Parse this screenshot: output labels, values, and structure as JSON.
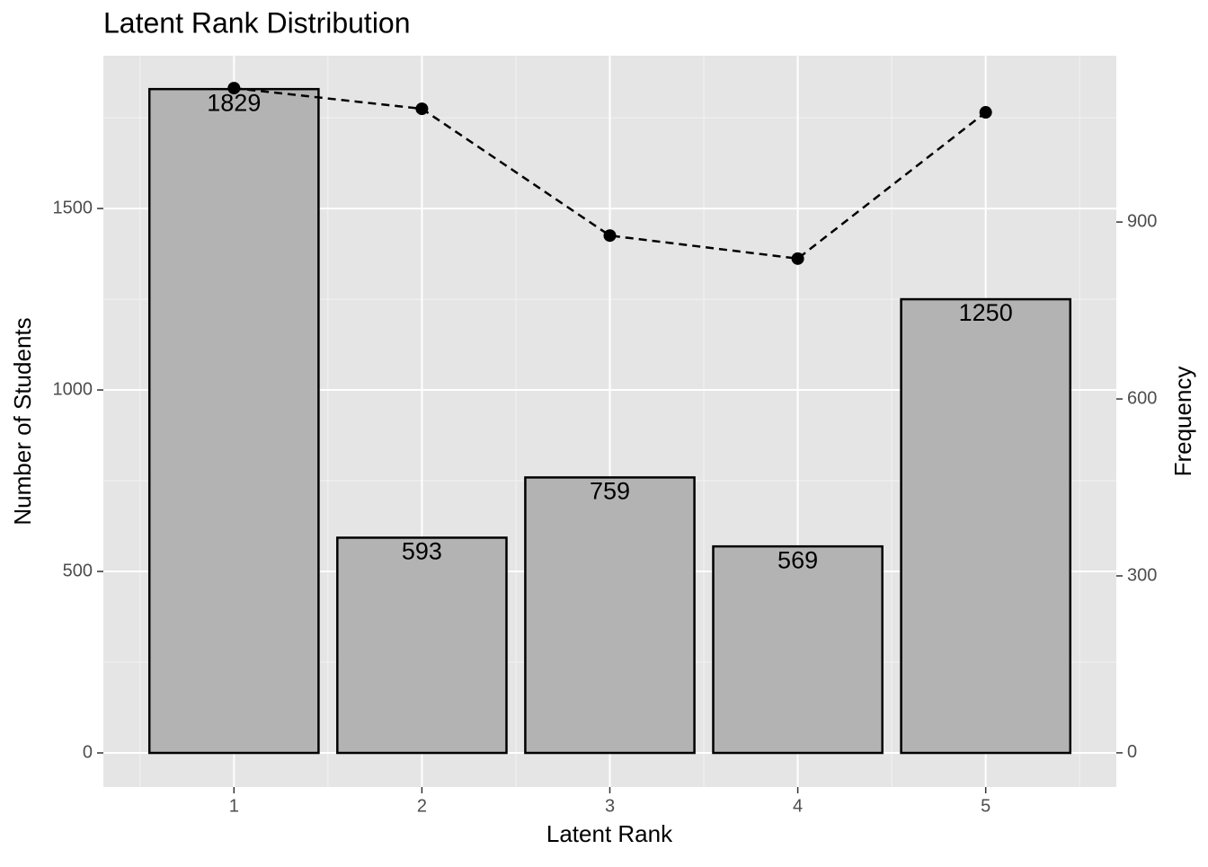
{
  "chart_data": {
    "type": "bar",
    "title": "Latent Rank Distribution",
    "x_label": "Latent Rank",
    "y_label": "Number of Students",
    "y2_label": "Frequency",
    "x": [
      1,
      2,
      3,
      4,
      5
    ],
    "series": [
      {
        "type": "bar",
        "color": "#b3b3b3",
        "values": [
          1829,
          593,
          759,
          569,
          1250
        ]
      },
      {
        "type": "line",
        "axis": "y2",
        "color": "#000000",
        "values": [
          1127,
          1092,
          877,
          838,
          1086
        ]
      }
    ],
    "xlim": [
      0.305,
      5.695
    ],
    "xticks": [
      1,
      2,
      3,
      4,
      5
    ],
    "ylim": [
      -94,
      1921
    ],
    "yticks": [
      0,
      500,
      1000,
      1500
    ],
    "y2lim": [
      -58,
      1182
    ],
    "y2ticks": [
      0,
      300,
      600,
      900
    ],
    "grid": true
  }
}
